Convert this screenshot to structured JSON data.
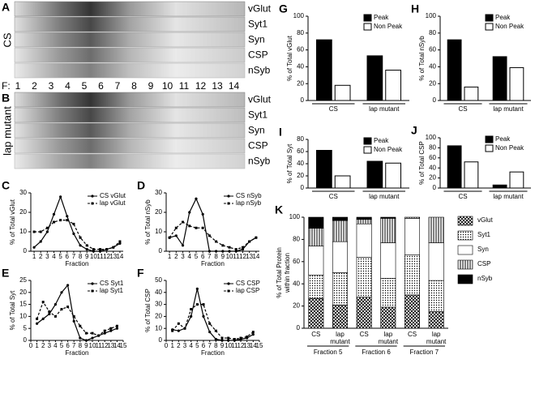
{
  "fraction_label": "F:",
  "fractions": [
    1,
    2,
    3,
    4,
    5,
    6,
    7,
    8,
    9,
    10,
    11,
    12,
    13,
    14
  ],
  "blots": [
    {
      "panel": "A",
      "side_label": "CS",
      "rows": [
        "vGlut",
        "Syt1",
        "Syn",
        "CSP",
        "nSyb"
      ]
    },
    {
      "panel": "B",
      "side_label": "lap mutant",
      "rows": [
        "vGlut",
        "Syt1",
        "Syn",
        "CSP",
        "nSyb"
      ]
    }
  ],
  "chart_data": [
    {
      "type": "line",
      "panel": "C",
      "xlabel": "Fraction",
      "ylabel": "% of Total vGlut",
      "x": [
        1,
        2,
        3,
        4,
        5,
        6,
        7,
        8,
        9,
        10,
        11,
        12,
        13,
        14
      ],
      "xlim": [
        0.5,
        14.5
      ],
      "xticks": [
        1,
        2,
        3,
        4,
        5,
        6,
        7,
        8,
        9,
        10,
        11,
        12,
        13,
        14
      ],
      "ylim": [
        0,
        30
      ],
      "yticks": [
        0,
        10,
        20,
        30
      ],
      "series": [
        {
          "name": "CS vGlut",
          "color": "#000",
          "marker": "circle",
          "dashed": false,
          "values": [
            2,
            5,
            10,
            19,
            28,
            18,
            9,
            3,
            1,
            0,
            0,
            1,
            2,
            4
          ]
        },
        {
          "name": "lap vGlut",
          "color": "#000",
          "marker": "square",
          "dashed": true,
          "values": [
            10,
            10,
            12,
            15,
            16,
            16,
            14,
            7,
            3,
            1,
            1,
            1,
            2,
            5
          ]
        }
      ]
    },
    {
      "type": "line",
      "panel": "D",
      "xlabel": "Fraction",
      "ylabel": "% of Total nSyb",
      "x": [
        1,
        2,
        3,
        4,
        5,
        6,
        7,
        8,
        9,
        10,
        11,
        12,
        13,
        14
      ],
      "xlim": [
        0.5,
        14.5
      ],
      "xticks": [
        1,
        2,
        3,
        4,
        5,
        6,
        7,
        8,
        9,
        10,
        11,
        12,
        13,
        14
      ],
      "ylim": [
        0,
        30
      ],
      "yticks": [
        0,
        10,
        20,
        30
      ],
      "series": [
        {
          "name": "CS nSyb",
          "color": "#000",
          "marker": "circle",
          "dashed": false,
          "values": [
            7,
            8,
            3,
            20,
            27,
            19,
            0,
            0,
            0,
            0,
            0,
            1,
            5,
            7
          ]
        },
        {
          "name": "lap nSyb",
          "color": "#000",
          "marker": "square",
          "dashed": true,
          "values": [
            7,
            12,
            15,
            13,
            12,
            12,
            8,
            5,
            3,
            2,
            1,
            2,
            5,
            7
          ]
        }
      ]
    },
    {
      "type": "line",
      "panel": "E",
      "xlabel": "Fraction",
      "ylabel": "% of Total Syt",
      "x": [
        1,
        2,
        3,
        4,
        5,
        6,
        7,
        8,
        9,
        10,
        11,
        12,
        13,
        14
      ],
      "xlim": [
        0,
        15
      ],
      "xticks": [
        0,
        1,
        2,
        3,
        4,
        5,
        6,
        7,
        8,
        9,
        10,
        11,
        12,
        13,
        14,
        15
      ],
      "ylim": [
        0,
        25
      ],
      "yticks": [
        0,
        5,
        10,
        15,
        20,
        25
      ],
      "series": [
        {
          "name": "CS Syt1",
          "color": "#000",
          "marker": "circle",
          "dashed": false,
          "values": [
            7,
            9,
            11,
            15,
            20,
            23,
            8,
            1,
            0,
            1,
            2,
            3,
            4,
            5
          ]
        },
        {
          "name": "lap Syt1",
          "color": "#000",
          "marker": "square",
          "dashed": true,
          "values": [
            9,
            16,
            12,
            10,
            13,
            14,
            10,
            6,
            3,
            3,
            2,
            4,
            5,
            6
          ]
        }
      ]
    },
    {
      "type": "line",
      "panel": "F",
      "xlabel": "Fraction",
      "ylabel": "% of Total CSP",
      "x": [
        1,
        2,
        3,
        4,
        5,
        6,
        7,
        8,
        9,
        10,
        11,
        12,
        13,
        14
      ],
      "xlim": [
        0,
        15
      ],
      "xticks": [
        0,
        1,
        2,
        3,
        4,
        5,
        6,
        7,
        8,
        9,
        10,
        11,
        12,
        13,
        14,
        15
      ],
      "ylim": [
        0,
        50
      ],
      "yticks": [
        0,
        10,
        20,
        30,
        40,
        50
      ],
      "series": [
        {
          "name": "CS CSP",
          "color": "#000",
          "marker": "circle",
          "dashed": false,
          "values": [
            9,
            8,
            10,
            20,
            43,
            20,
            7,
            1,
            0,
            0,
            0,
            1,
            2,
            5
          ]
        },
        {
          "name": "lap CSP",
          "color": "#000",
          "marker": "square",
          "dashed": true,
          "values": [
            8,
            14,
            10,
            26,
            30,
            30,
            14,
            8,
            2,
            2,
            1,
            2,
            3,
            7
          ]
        }
      ]
    },
    {
      "type": "bar",
      "panel": "G",
      "ylabel": "% of Total vGlut",
      "categories": [
        "CS",
        "lap mutant"
      ],
      "ylim": [
        0,
        100
      ],
      "yticks": [
        0,
        20,
        40,
        60,
        80,
        100
      ],
      "legend": "upper right",
      "series": [
        {
          "name": "Peak",
          "color": "#000",
          "values": [
            72,
            53
          ]
        },
        {
          "name": "Non Peak",
          "color": "#fff",
          "values": [
            18,
            36
          ]
        }
      ]
    },
    {
      "type": "bar",
      "panel": "H",
      "ylabel": "% of Total nSyb",
      "categories": [
        "CS",
        "lap mutant"
      ],
      "ylim": [
        0,
        100
      ],
      "yticks": [
        0,
        20,
        40,
        60,
        80,
        100
      ],
      "legend": "upper right",
      "series": [
        {
          "name": "Peak",
          "color": "#000",
          "values": [
            72,
            52
          ]
        },
        {
          "name": "Non Peak",
          "color": "#fff",
          "values": [
            16,
            39
          ]
        }
      ]
    },
    {
      "type": "bar",
      "panel": "I",
      "ylabel": "% of Total Syt",
      "categories": [
        "CS",
        "lap mutant"
      ],
      "ylim": [
        0,
        80
      ],
      "yticks": [
        0,
        20,
        40,
        60,
        80
      ],
      "legend": "upper right",
      "series": [
        {
          "name": "Peak",
          "color": "#000",
          "values": [
            62,
            44
          ]
        },
        {
          "name": "Non Peak",
          "color": "#fff",
          "values": [
            20,
            41
          ]
        }
      ]
    },
    {
      "type": "bar",
      "panel": "J",
      "ylabel": "% of Total CSP",
      "categories": [
        "CS",
        "lap mutant"
      ],
      "ylim": [
        0,
        100
      ],
      "yticks": [
        0,
        20,
        40,
        60,
        80,
        100
      ],
      "legend": "upper right",
      "series": [
        {
          "name": "Peak",
          "color": "#000",
          "values": [
            84,
            6
          ]
        },
        {
          "name": "Non Peak",
          "color": "#fff",
          "values": [
            52,
            32
          ]
        }
      ]
    },
    {
      "type": "stacked",
      "panel": "K",
      "ylabel": [
        "% of Total Protein",
        "within fraction"
      ],
      "categories": [
        "CS",
        "lap mutant",
        "CS",
        "lap mutant",
        "CS",
        "lap mutant"
      ],
      "groups": [
        "Fraction 5",
        "Fraction 6",
        "Fraction 7"
      ],
      "ylim": [
        0,
        100
      ],
      "yticks": [
        0,
        20,
        40,
        60,
        80,
        100
      ],
      "legend": "right",
      "series": [
        {
          "name": "vGlut",
          "fill": "crosshatch",
          "values": [
            27,
            21,
            28,
            19,
            30,
            15
          ]
        },
        {
          "name": "Syt1",
          "fill": "dots",
          "values": [
            21,
            29,
            36,
            26,
            36,
            28
          ]
        },
        {
          "name": "Syn",
          "fill": "white",
          "values": [
            26,
            28,
            30,
            32,
            33,
            34
          ]
        },
        {
          "name": "CSP",
          "fill": "stripes",
          "values": [
            16,
            19,
            4,
            22,
            1,
            23
          ]
        },
        {
          "name": "nSyb",
          "fill": "black",
          "values": [
            10,
            3,
            2,
            1,
            0,
            0
          ]
        }
      ]
    }
  ]
}
